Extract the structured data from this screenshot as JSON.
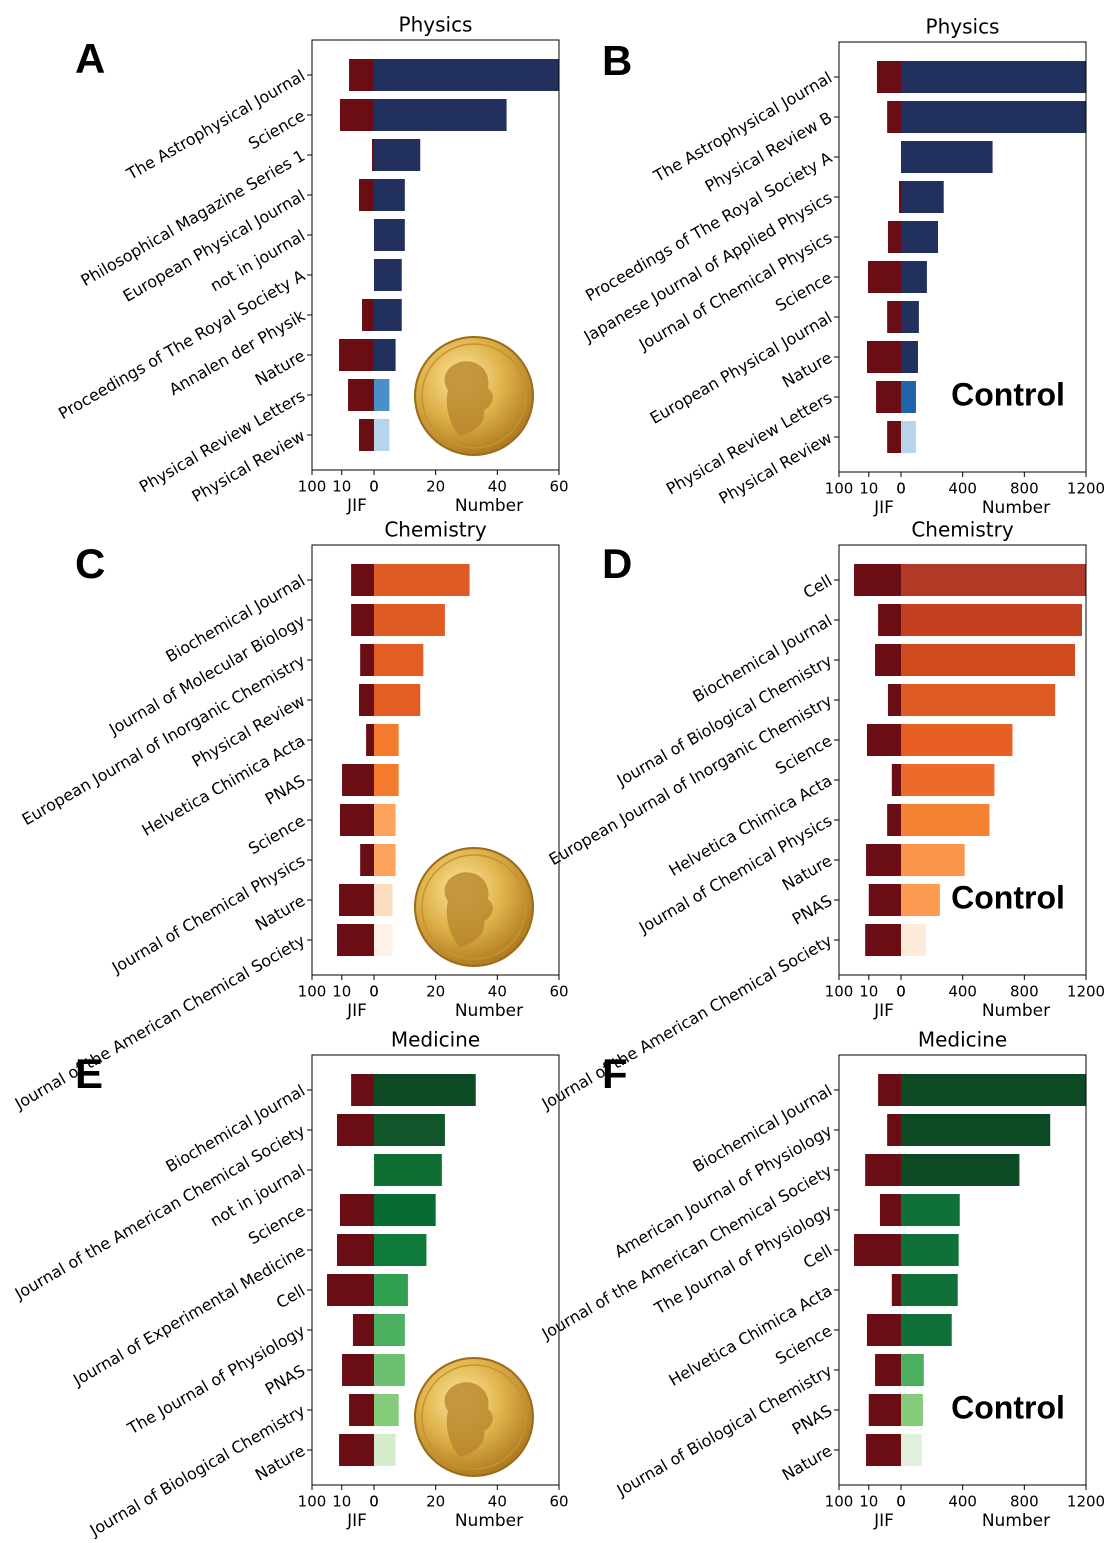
{
  "chart_data": [
    {
      "type": "bar",
      "panel_label": "A",
      "title": "Physics",
      "categories": [
        "The Astrophysical Journal",
        "Science",
        "Philosophical Magazine Series 1",
        "European Physical Journal",
        "not in journal",
        "Proceedings of The Royal Society A",
        "Annalen der Physik",
        "Nature",
        "Physical Review Letters",
        "Physical Review"
      ],
      "series": [
        {
          "name": "JIF",
          "color": "#6b0d15",
          "scale": "symlog",
          "xlim": [
            100,
            0
          ],
          "xticks": [
            100,
            10,
            0
          ],
          "values": [
            5.4,
            11.6,
            0.16,
            2.05,
            0,
            0,
            1.44,
            12.5,
            5.9,
            2.05
          ]
        },
        {
          "name": "Number",
          "colors": [
            "#22305e",
            "#22305e",
            "#22305e",
            "#22305e",
            "#22305e",
            "#22305e",
            "#22305e",
            "#22305e",
            "#4a90c8",
            "#b8d4ea"
          ],
          "xlim": [
            0,
            60
          ],
          "xticks": [
            0,
            20,
            40,
            60
          ],
          "values": [
            62,
            43,
            15,
            10,
            10,
            9,
            9,
            7,
            5,
            5
          ]
        }
      ]
    },
    {
      "type": "bar",
      "panel_label": "B",
      "title": "Physics",
      "annotation": "Control",
      "categories": [
        "The Astrophysical Journal",
        "Physical Review B",
        "Proceedings of The Royal Society A",
        "Japanese Journal of Applied Physics",
        "Journal of Chemical Physics",
        "Science",
        "European Physical Journal",
        "Nature",
        "Physical Review Letters",
        "Physical Review"
      ],
      "series": [
        {
          "name": "JIF",
          "color": "#6b0d15",
          "scale": "symlog",
          "xlim": [
            100,
            0
          ],
          "xticks": [
            100,
            10,
            0
          ],
          "values": [
            5.0,
            1.8,
            0,
            0.16,
            1.64,
            10.7,
            1.8,
            11.6,
            5.4,
            1.8
          ]
        },
        {
          "name": "Number",
          "colors": [
            "#22305e",
            "#22305e",
            "#22305e",
            "#22305e",
            "#22305e",
            "#22305e",
            "#22305e",
            "#22305e",
            "#1f63a8",
            "#b8d4ea"
          ],
          "xlim": [
            0,
            1200
          ],
          "xticks": [
            0,
            400,
            800,
            1200
          ],
          "values": [
            1250,
            1250,
            594,
            277,
            240,
            168,
            116,
            110,
            97,
            97
          ]
        }
      ]
    },
    {
      "type": "bar",
      "panel_label": "C",
      "title": "Chemistry",
      "categories": [
        "Biochemical Journal",
        "Journal of Molecular Biology",
        "European Journal of Inorganic Chemistry",
        "Physical Review",
        "Helvetica Chimica Acta",
        "PNAS",
        "Science",
        "Journal of Chemical Physics",
        "Nature",
        "Journal of the American Chemical Society"
      ],
      "series": [
        {
          "name": "JIF",
          "color": "#6b0d15",
          "scale": "symlog",
          "xlim": [
            100,
            0
          ],
          "xticks": [
            100,
            10,
            0
          ],
          "values": [
            4.5,
            4.5,
            1.8,
            2.05,
            0.8,
            9.8,
            11.6,
            1.8,
            12.5,
            14.7
          ]
        },
        {
          "name": "Number",
          "colors": [
            "#e05a24",
            "#e05a24",
            "#e35d25",
            "#e35d25",
            "#f47b2c",
            "#f47b2c",
            "#fca35f",
            "#fca35f",
            "#fddcc0",
            "#fff1e5"
          ],
          "xlim": [
            0,
            60
          ],
          "xticks": [
            0,
            20,
            40,
            60
          ],
          "values": [
            31,
            23,
            16,
            15,
            8,
            8,
            7,
            7,
            6,
            6
          ]
        }
      ]
    },
    {
      "type": "bar",
      "panel_label": "D",
      "title": "Chemistry",
      "annotation": "Control",
      "categories": [
        "Cell",
        "Biochemical Journal",
        "Journal of Biological Chemistry",
        "European Journal of Inorganic Chemistry",
        "Science",
        "Helvetica Chimica Acta",
        "Journal of Chemical Physics",
        "Nature",
        "PNAS",
        "Journal of the American Chemical Society"
      ],
      "series": [
        {
          "name": "JIF",
          "color": "#6b0d15",
          "scale": "symlog",
          "xlim": [
            100,
            0
          ],
          "xticks": [
            100,
            10,
            0
          ],
          "values": [
            32,
            4.5,
            5.9,
            1.64,
            11.6,
            0.98,
            1.8,
            12.5,
            10,
            13.4
          ]
        },
        {
          "name": "Number",
          "colors": [
            "#b03a26",
            "#c2401f",
            "#d24b1e",
            "#e05a24",
            "#e85f24",
            "#ee6a28",
            "#f58232",
            "#fa954c",
            "#fb9a50",
            "#fdebd9"
          ],
          "xlim": [
            0,
            1200
          ],
          "xticks": [
            0,
            400,
            800,
            1200
          ],
          "values": [
            1200,
            1174,
            1129,
            1000,
            723,
            606,
            574,
            413,
            252,
            161
          ]
        }
      ]
    },
    {
      "type": "bar",
      "panel_label": "E",
      "title": "Medicine",
      "categories": [
        "Biochemical Journal",
        "Journal of the American Chemical Society",
        "not in journal",
        "Science",
        "Journal of Experimental Medicine",
        "Cell",
        "The Journal of Physiology",
        "PNAS",
        "Journal of Biological Chemistry",
        "Nature"
      ],
      "series": [
        {
          "name": "JIF",
          "color": "#6b0d15",
          "scale": "symlog",
          "xlim": [
            100,
            0
          ],
          "xticks": [
            100,
            10,
            0
          ],
          "values": [
            4.5,
            14.7,
            0,
            11.6,
            14.7,
            32,
            3.8,
            9.8,
            5.4,
            12.5
          ]
        },
        {
          "name": "Number",
          "colors": [
            "#0b4a22",
            "#11552b",
            "#0f6e32",
            "#066a33",
            "#0e7a3a",
            "#30a050",
            "#4bb060",
            "#6cc070",
            "#84cb7a",
            "#d4ebcc"
          ],
          "xlim": [
            0,
            60
          ],
          "xticks": [
            0,
            20,
            40,
            60
          ],
          "values": [
            33,
            23,
            22,
            20,
            17,
            11,
            10,
            10,
            8,
            7
          ]
        }
      ]
    },
    {
      "type": "bar",
      "panel_label": "F",
      "title": "Medicine",
      "annotation": "Control",
      "categories": [
        "Biochemical Journal",
        "American Journal of Physiology",
        "Journal of the American Chemical Society",
        "The Journal of Physiology",
        "Cell",
        "Helvetica Chimica Acta",
        "Science",
        "Journal of Biological Chemistry",
        "PNAS",
        "Nature"
      ],
      "series": [
        {
          "name": "JIF",
          "color": "#6b0d15",
          "scale": "symlog",
          "xlim": [
            100,
            0
          ],
          "xticks": [
            100,
            10,
            0
          ],
          "values": [
            4.5,
            1.8,
            13.4,
            3.8,
            32,
            0.98,
            11.6,
            5.9,
            10,
            12.5
          ]
        },
        {
          "name": "Number",
          "colors": [
            "#0b4a22",
            "#0b4a22",
            "#0b4a22",
            "#0f7038",
            "#0f7038",
            "#0f7038",
            "#0f7038",
            "#4cb060",
            "#84cb7a",
            "#e0f0dc"
          ],
          "xlim": [
            0,
            1200
          ],
          "xticks": [
            0,
            400,
            800,
            1200
          ],
          "values": [
            1200,
            968,
            768,
            381,
            374,
            368,
            329,
            148,
            142,
            135
          ]
        }
      ]
    }
  ]
}
